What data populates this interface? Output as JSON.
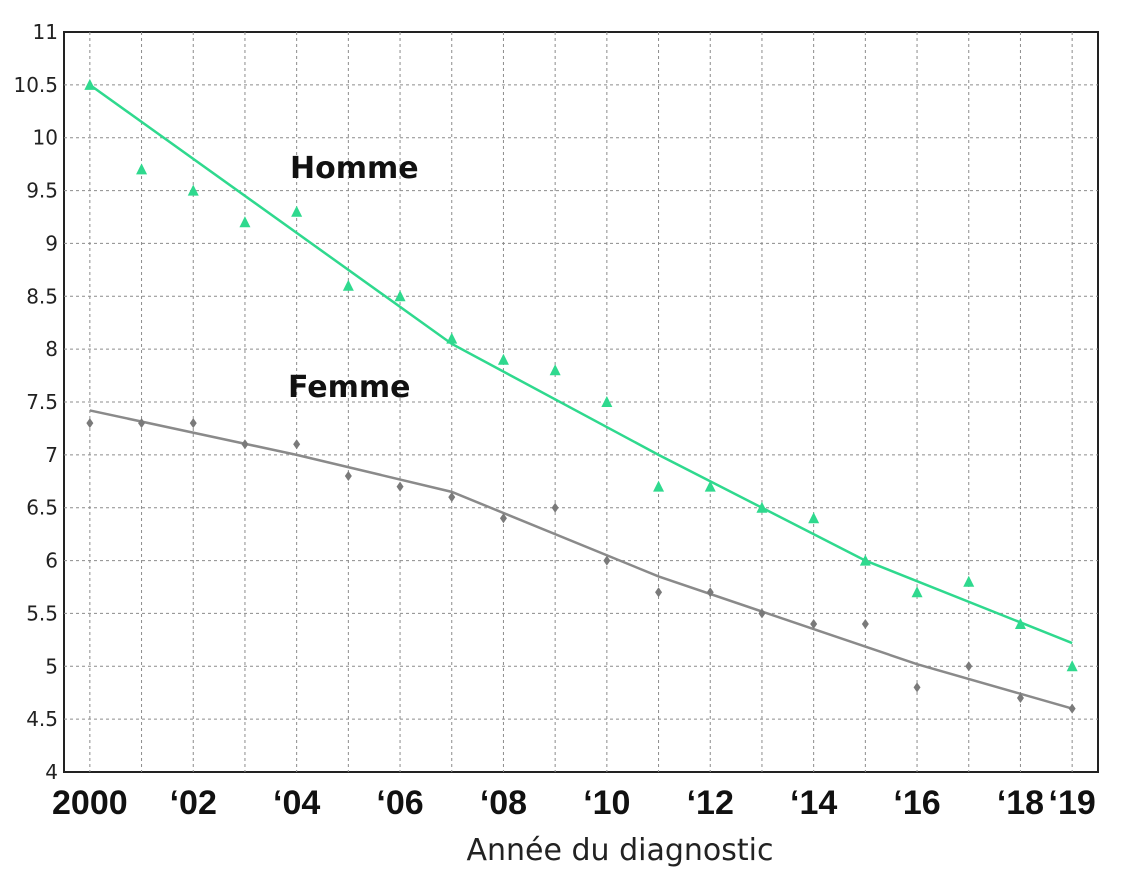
{
  "chart_data": {
    "type": "scatter",
    "xlabel": "Année du diagnostic",
    "ylabel": "",
    "xlim": [
      1999.5,
      2019.5
    ],
    "ylim": [
      4,
      11
    ],
    "grid": true,
    "yticks": [
      4,
      4.5,
      5,
      5.5,
      6,
      6.5,
      7,
      7.5,
      8,
      8.5,
      9,
      9.5,
      10,
      10.5,
      11
    ],
    "ytick_labels": [
      "4",
      "4.5",
      "5",
      "5.5",
      "6",
      "6.5",
      "7",
      "7.5",
      "8",
      "8.5",
      "9",
      "9.5",
      "10",
      "10.5",
      "11"
    ],
    "xticks": [
      2000,
      2002,
      2004,
      2006,
      2008,
      2010,
      2012,
      2014,
      2016,
      2018,
      2019
    ],
    "xtick_labels": [
      "2000",
      "‘02",
      "‘04",
      "‘06",
      "‘08",
      "‘10",
      "‘12",
      "‘14",
      "‘16",
      "‘18",
      "‘19"
    ],
    "series": [
      {
        "name": "Homme",
        "color": "#2fd98e",
        "marker": "triangle",
        "x": [
          2000,
          2001,
          2002,
          2003,
          2004,
          2005,
          2006,
          2007,
          2008,
          2009,
          2010,
          2011,
          2012,
          2013,
          2014,
          2015,
          2016,
          2017,
          2018,
          2019
        ],
        "values": [
          10.5,
          9.7,
          9.5,
          9.2,
          9.3,
          8.6,
          8.5,
          8.1,
          7.9,
          7.8,
          7.5,
          6.7,
          6.7,
          6.5,
          6.4,
          6.0,
          5.7,
          5.8,
          5.4,
          5.0
        ],
        "trend": [
          [
            2000,
            10.5
          ],
          [
            2007,
            8.05
          ],
          [
            2011,
            7.0
          ],
          [
            2015,
            6.0
          ],
          [
            2019,
            5.22
          ]
        ]
      },
      {
        "name": "Femme",
        "color": "#8a8a8a",
        "marker": "diamond",
        "x": [
          2000,
          2001,
          2002,
          2003,
          2004,
          2005,
          2006,
          2007,
          2008,
          2009,
          2010,
          2011,
          2012,
          2013,
          2014,
          2015,
          2016,
          2017,
          2018,
          2019
        ],
        "values": [
          7.3,
          7.3,
          7.3,
          7.1,
          7.1,
          6.8,
          6.7,
          6.6,
          6.4,
          6.5,
          6.0,
          5.7,
          5.7,
          5.5,
          5.4,
          5.4,
          4.8,
          5.0,
          4.7,
          4.6
        ],
        "trend": [
          [
            2000,
            7.42
          ],
          [
            2004,
            7.0
          ],
          [
            2007,
            6.65
          ],
          [
            2011,
            5.85
          ],
          [
            2016,
            5.02
          ],
          [
            2019,
            4.6
          ]
        ]
      }
    ]
  }
}
